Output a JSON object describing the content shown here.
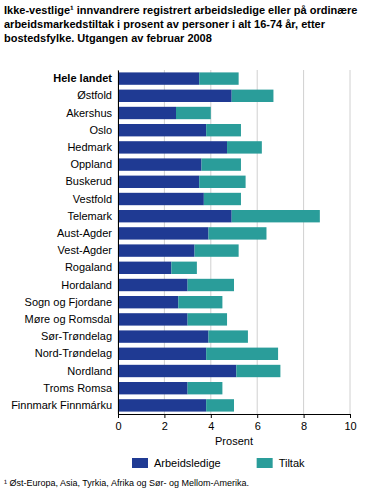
{
  "chart_data": {
    "type": "bar",
    "orientation": "horizontal",
    "stacked": true,
    "title": "Ikke-vestlige¹ innvandrere registrert arbeidsledige eller på ordinære arbeidsmarkedstiltak i prosent av personer i alt 16-74 år, etter bostedsfylke. Utgangen av februar 2008",
    "x_label": "Prosent",
    "categories": [
      "Hele landet",
      "Østfold",
      "Akershus",
      "Oslo",
      "Hedmark",
      "Oppland",
      "Buskerud",
      "Vestfold",
      "Telemark",
      "Aust-Agder",
      "Vest-Agder",
      "Rogaland",
      "Hordaland",
      "Sogn og Fjordane",
      "Møre og Romsdal",
      "Sør-Trøndelag",
      "Nord-Trøndelag",
      "Nordland",
      "Troms Romsa",
      "Finnmark Finnmárku"
    ],
    "series": [
      {
        "name": "Arbeidsledige",
        "color": "#1f3a93",
        "values": [
          3.5,
          4.9,
          2.5,
          3.8,
          4.7,
          3.6,
          3.5,
          3.7,
          4.9,
          3.9,
          3.3,
          2.3,
          3.0,
          2.6,
          3.0,
          3.9,
          3.8,
          5.1,
          3.0,
          3.8
        ]
      },
      {
        "name": "Tiltak",
        "color": "#2a9d9a",
        "values": [
          1.7,
          1.8,
          1.5,
          1.5,
          1.5,
          1.7,
          2.0,
          1.6,
          3.8,
          2.5,
          1.9,
          1.1,
          2.0,
          1.9,
          1.7,
          1.7,
          3.1,
          1.9,
          1.5,
          1.2
        ]
      }
    ],
    "xlim": [
      0,
      10
    ],
    "xticks": [
      0,
      2,
      4,
      6,
      8,
      10
    ],
    "grid": true,
    "legend": "bottom",
    "annotations": [
      "¹ Øst-Europa, Asia, Tyrkia, Afrika og Sør- og Mellom-Amerika."
    ]
  }
}
